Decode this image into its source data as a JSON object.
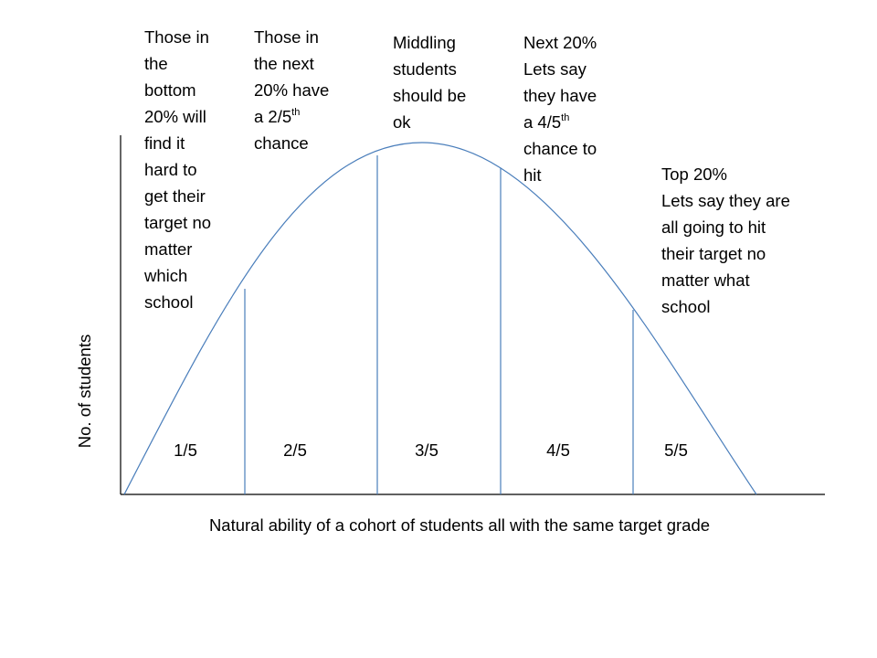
{
  "annotations": [
    {
      "lines": [
        "Those in",
        "the",
        "bottom",
        "20% will",
        "find it",
        "hard to",
        "get their",
        "target no",
        "matter",
        "which",
        "school"
      ]
    },
    {
      "lines": [
        "Those in",
        "the next",
        "20% have",
        {
          "text": "a 2/5",
          "sup": "th"
        },
        "chance"
      ]
    },
    {
      "lines": [
        "Middling",
        "students",
        "should be",
        "ok"
      ]
    },
    {
      "lines": [
        "Next 20%",
        "Lets say",
        "they have",
        {
          "text": "a 4/5",
          "sup": "th"
        },
        "chance to",
        "hit"
      ]
    },
    {
      "lines": [
        "Top 20%",
        "Lets say they are",
        "all going to hit",
        "their target no",
        "matter what",
        "school"
      ]
    }
  ],
  "bands": [
    "1/5",
    "2/5",
    "3/5",
    "4/5",
    "5/5"
  ],
  "x_axis_label": "Natural ability of a cohort of students all with the same target grade",
  "y_axis_label": "No. of students"
}
